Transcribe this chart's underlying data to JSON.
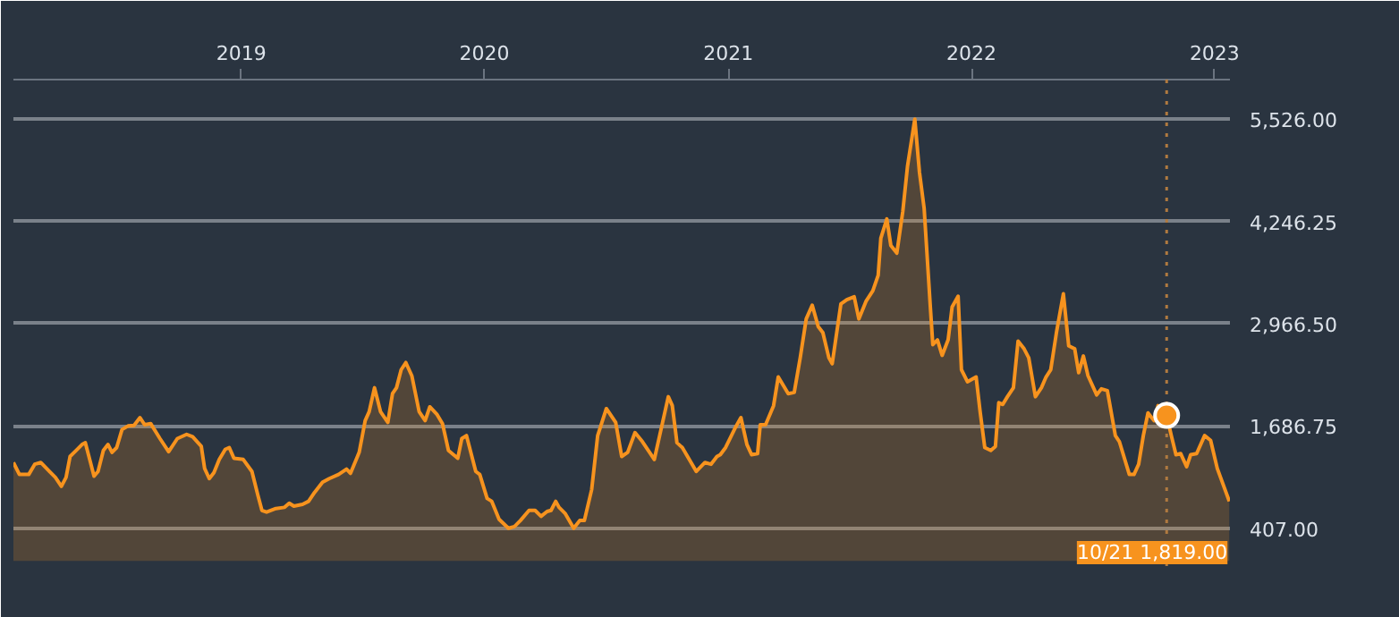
{
  "chart_data": {
    "type": "area",
    "xlim": [
      "2018-01-24",
      "2023-01-24"
    ],
    "ylim": [
      -110,
      6020
    ],
    "xticks": [
      "2019",
      "2020",
      "2021",
      "2022",
      "2023"
    ],
    "yticks": [
      {
        "value": 407,
        "label": "407.00"
      },
      {
        "value": 1686.75,
        "label": "1,686.75"
      },
      {
        "value": 2966.5,
        "label": "2,966.50"
      },
      {
        "value": 4246.25,
        "label": "4,246.25"
      },
      {
        "value": 5526,
        "label": "5,526.00"
      }
    ],
    "grid": "y",
    "marker": "none",
    "line_style": "solid",
    "ref_lines": [
      {
        "axis": "x",
        "value": "2022-10-21",
        "label": "10/21 1,819.00",
        "color": "#b07a40",
        "line_style": "dotted"
      }
    ],
    "series": [
      {
        "type": "scatter",
        "marker": "circle",
        "color": "#f7931e",
        "x": [
          "2022-10-21"
        ],
        "values": [
          1819
        ]
      },
      {
        "color": "#f7931e",
        "x": [
          "2018-01-24",
          "2018-02-02",
          "2018-02-16",
          "2018-02-25",
          "2018-03-06",
          "2018-03-19",
          "2018-03-28",
          "2018-04-06",
          "2018-04-13",
          "2018-04-19",
          "2018-04-28",
          "2018-05-07",
          "2018-05-12",
          "2018-05-25",
          "2018-05-31",
          "2018-06-08",
          "2018-06-15",
          "2018-06-21",
          "2018-06-28",
          "2018-07-06",
          "2018-07-15",
          "2018-07-24",
          "2018-08-02",
          "2018-08-09",
          "2018-08-18",
          "2018-09-01",
          "2018-09-14",
          "2018-09-27",
          "2018-10-11",
          "2018-10-20",
          "2018-11-02",
          "2018-11-07",
          "2018-11-14",
          "2018-11-21",
          "2018-11-29",
          "2018-12-08",
          "2018-12-14",
          "2018-12-21",
          "2019-01-04",
          "2019-01-17",
          "2019-01-26",
          "2019-02-01",
          "2019-02-08",
          "2019-02-22",
          "2019-03-07",
          "2019-03-14",
          "2019-03-21",
          "2019-04-03",
          "2019-04-12",
          "2019-04-21",
          "2019-05-03",
          "2019-05-13",
          "2019-05-27",
          "2019-06-08",
          "2019-06-14",
          "2019-06-27",
          "2019-07-06",
          "2019-07-12",
          "2019-07-20",
          "2019-07-29",
          "2019-08-09",
          "2019-08-16",
          "2019-08-22",
          "2019-08-29",
          "2019-09-05",
          "2019-09-14",
          "2019-09-25",
          "2019-10-04",
          "2019-10-11",
          "2019-10-22",
          "2019-10-30",
          "2019-11-08",
          "2019-11-22",
          "2019-11-28",
          "2019-12-05",
          "2019-12-19",
          "2019-12-25",
          "2020-01-05",
          "2020-01-12",
          "2020-01-23",
          "2020-02-06",
          "2020-02-15",
          "2020-02-24",
          "2020-03-08",
          "2020-03-17",
          "2020-03-26",
          "2020-04-04",
          "2020-04-10",
          "2020-04-17",
          "2020-04-22",
          "2020-05-01",
          "2020-05-14",
          "2020-05-23",
          "2020-05-30",
          "2020-06-10",
          "2020-06-19",
          "2020-07-02",
          "2020-07-16",
          "2020-07-25",
          "2020-08-03",
          "2020-08-14",
          "2020-08-25",
          "2020-09-12",
          "2020-10-03",
          "2020-10-09",
          "2020-10-16",
          "2020-10-24",
          "2020-11-14",
          "2020-11-27",
          "2020-12-06",
          "2020-12-15",
          "2020-12-20",
          "2020-12-28",
          "2021-01-11",
          "2021-01-20",
          "2021-01-29",
          "2021-02-05",
          "2021-02-14",
          "2021-02-18",
          "2021-02-26",
          "2021-03-10",
          "2021-03-17",
          "2021-04-01",
          "2021-04-10",
          "2021-04-19",
          "2021-04-28",
          "2021-05-07",
          "2021-05-16",
          "2021-05-23",
          "2021-06-01",
          "2021-06-06",
          "2021-06-19",
          "2021-06-28",
          "2021-07-09",
          "2021-07-16",
          "2021-07-27",
          "2021-08-06",
          "2021-08-14",
          "2021-08-18",
          "2021-08-27",
          "2021-09-02",
          "2021-09-11",
          "2021-09-20",
          "2021-09-27",
          "2021-10-08",
          "2021-10-15",
          "2021-10-22",
          "2021-10-31",
          "2021-11-04",
          "2021-11-11",
          "2021-11-18",
          "2021-11-27",
          "2021-12-03",
          "2021-12-12",
          "2021-12-17",
          "2021-12-26",
          "2022-01-08",
          "2022-01-14",
          "2022-01-21",
          "2022-01-30",
          "2022-02-06",
          "2022-02-11",
          "2022-02-17",
          "2022-02-24",
          "2022-03-05",
          "2022-03-12",
          "2022-03-21",
          "2022-03-28",
          "2022-04-07",
          "2022-04-16",
          "2022-04-23",
          "2022-04-30",
          "2022-05-09",
          "2022-05-19",
          "2022-05-27",
          "2022-06-05",
          "2022-06-11",
          "2022-06-18",
          "2022-06-25",
          "2022-07-08",
          "2022-07-15",
          "2022-07-24",
          "2022-08-05",
          "2022-08-11",
          "2022-08-26",
          "2022-09-02",
          "2022-09-09",
          "2022-09-16",
          "2022-09-23",
          "2022-10-02",
          "2022-10-08",
          "2022-10-21",
          "2022-10-28",
          "2022-11-04",
          "2022-11-11",
          "2022-11-20",
          "2022-11-26",
          "2022-12-05",
          "2022-12-17",
          "2022-12-26",
          "2023-01-05",
          "2023-01-23"
        ],
        "values": [
          1230,
          1080,
          1080,
          1208,
          1230,
          1118,
          1043,
          931,
          1043,
          1305,
          1380,
          1455,
          1477,
          1058,
          1118,
          1380,
          1455,
          1357,
          1417,
          1642,
          1687,
          1694,
          1791,
          1702,
          1717,
          1529,
          1365,
          1529,
          1582,
          1552,
          1432,
          1155,
          1028,
          1103,
          1268,
          1395,
          1417,
          1283,
          1268,
          1118,
          819,
          631,
          609,
          654,
          669,
          721,
          684,
          706,
          744,
          856,
          983,
          1028,
          1080,
          1148,
          1095,
          1357,
          1754,
          1866,
          2165,
          1866,
          1731,
          2091,
          2165,
          2390,
          2480,
          2315,
          1866,
          1754,
          1926,
          1829,
          1717,
          1380,
          1283,
          1529,
          1567,
          1118,
          1080,
          781,
          744,
          519,
          407,
          429,
          504,
          631,
          631,
          557,
          617,
          631,
          744,
          669,
          594,
          407,
          504,
          504,
          893,
          1567,
          1904,
          1731,
          1305,
          1357,
          1604,
          1492,
          1268,
          2053,
          1941,
          1477,
          1417,
          1118,
          1230,
          1208,
          1305,
          1327,
          1417,
          1657,
          1791,
          1455,
          1327,
          1342,
          1702,
          1702,
          1941,
          2300,
          2091,
          2106,
          2540,
          3026,
          3198,
          2929,
          2854,
          2540,
          2465,
          3213,
          3266,
          3303,
          3026,
          3251,
          3378,
          3572,
          4036,
          4276,
          3946,
          3849,
          4373,
          4934,
          5526,
          4859,
          4410,
          3213,
          2704,
          2764,
          2570,
          2764,
          3176,
          3310,
          2390,
          2240,
          2300,
          1866,
          1417,
          1380,
          1432,
          1978,
          1956,
          2053,
          2165,
          2749,
          2652,
          2540,
          2053,
          2165,
          2300,
          2390,
          2876,
          3340,
          2689,
          2652,
          2353,
          2562,
          2315,
          2076,
          2151,
          2128,
          1567,
          1492,
          1080,
          1080,
          1208,
          1567,
          1851,
          1754,
          1941,
          1819,
          1567,
          1327,
          1342,
          1178,
          1327,
          1342,
          1567,
          1507,
          1155,
          744
        ]
      }
    ]
  }
}
